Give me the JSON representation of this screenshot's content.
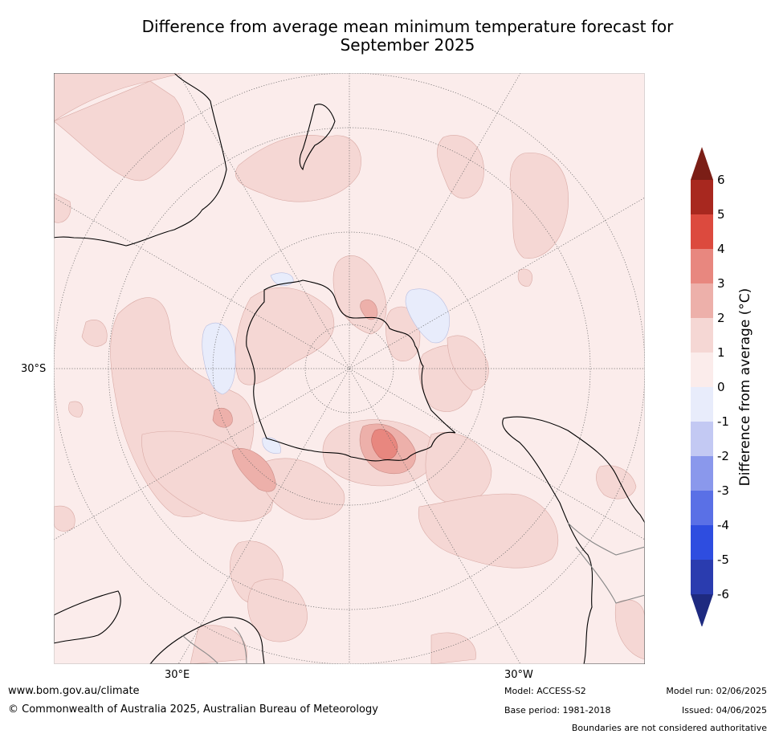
{
  "title_line1": "Difference from average mean minimum temperature forecast for",
  "title_line2": "September 2025",
  "map": {
    "projection": "south-polar-stereographic",
    "lat_label": "30°S",
    "lon_labels": {
      "east": "30°E",
      "west": "30°W"
    },
    "ocean_color": "#fbeceb",
    "coastline_color": "#000000",
    "border_color": "#888888"
  },
  "colorbar": {
    "title": "Difference from average (°C)",
    "ticks": [
      "6",
      "5",
      "4",
      "3",
      "2",
      "1",
      "0",
      "-1",
      "-2",
      "-3",
      "-4",
      "-5",
      "-6"
    ],
    "colors": {
      "above_6": "#7b1e16",
      "5_to_6": "#a8281f",
      "4_to_5": "#dc4a3e",
      "3_to_4": "#e8877f",
      "2_to_3": "#edb0aa",
      "1_to_2": "#f5d7d4",
      "0_to_1": "#fbeceb",
      "-1_to_0": "#e8ecfb",
      "-2_to_-1": "#c3c9f3",
      "-3_to_-2": "#8a98ec",
      "-4_to_-3": "#5a70e6",
      "-5_to_-4": "#2e4de0",
      "-6_to_-5": "#2a3caf",
      "below_-6": "#1e2a80"
    }
  },
  "footer": {
    "website": "www.bom.gov.au/climate",
    "copyright": "© Commonwealth of Australia 2025, Australian Bureau of Meteorology",
    "model": "Model: ACCESS-S2",
    "base_period": "Base period: 1981-2018",
    "model_run": "Model run: 02/06/2025",
    "issued": "Issued: 04/06/2025",
    "disclaimer": "Boundaries are not considered authoritative"
  }
}
